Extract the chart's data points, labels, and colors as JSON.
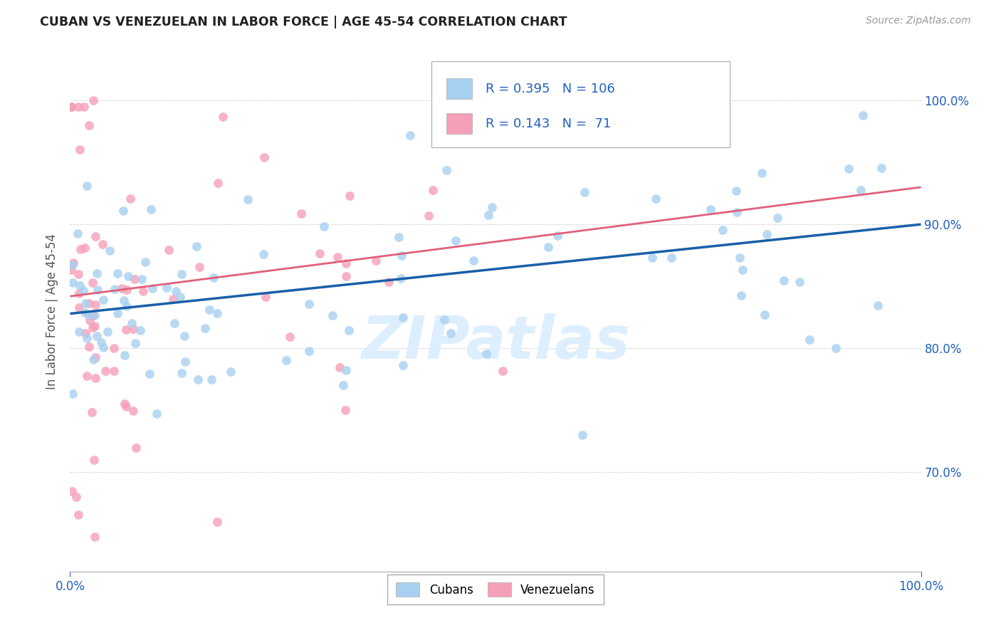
{
  "title": "CUBAN VS VENEZUELAN IN LABOR FORCE | AGE 45-54 CORRELATION CHART",
  "source": "Source: ZipAtlas.com",
  "ylabel": "In Labor Force | Age 45-54",
  "legend_cubans": "Cubans",
  "legend_venezuelans": "Venezuelans",
  "R_cuban": 0.395,
  "N_cuban": 106,
  "R_venezuelan": 0.143,
  "N_venezuelan": 71,
  "color_cuban": "#a8d0f0",
  "color_venezuelan": "#f5a0b8",
  "color_line_cuban": "#1a5fa8",
  "color_line_venezuelan": "#e0607a",
  "color_text_blue": "#2060c0",
  "background_color": "#ffffff",
  "watermark_text": "ZIPatlas",
  "watermark_color": "#ddeeff",
  "xlim": [
    0.0,
    1.0
  ],
  "ylim": [
    0.62,
    1.04
  ],
  "cuban_line_x0": 0.0,
  "cuban_line_y0": 0.828,
  "cuban_line_x1": 1.0,
  "cuban_line_y1": 0.9,
  "ven_line_x0": 0.0,
  "ven_line_y0": 0.842,
  "ven_line_x1": 1.0,
  "ven_line_y1": 0.93
}
